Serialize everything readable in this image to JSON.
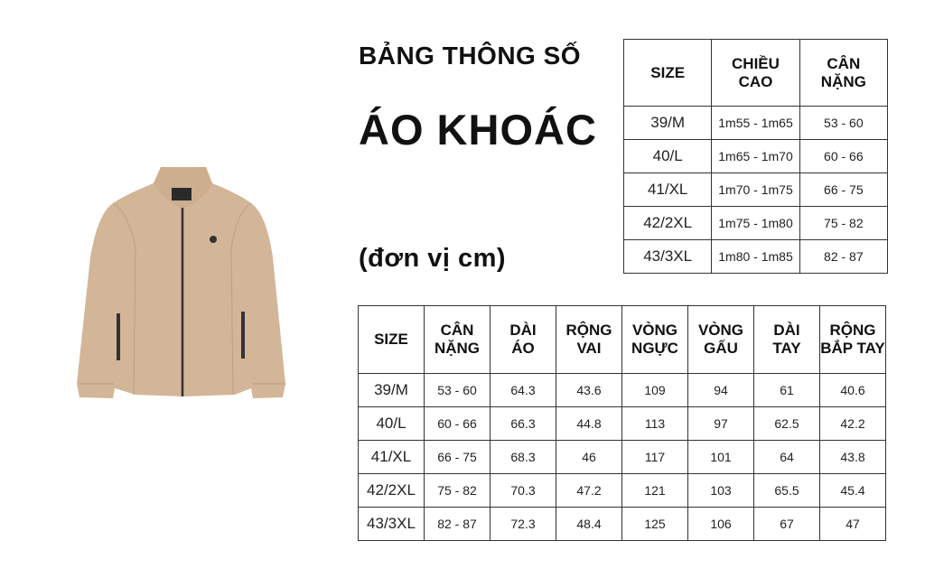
{
  "title_line1": "BẢNG THÔNG SỐ",
  "title_line2": "ÁO KHOÁC",
  "unit_note": "(đơn vị cm)",
  "product_image": {
    "icon": "beige-bomber-jacket",
    "color": "#d3b597"
  },
  "table_height_weight": {
    "headers": [
      "SIZE",
      "CHIỀU CAO",
      "CÂN NẶNG"
    ],
    "rows": [
      [
        "39/M",
        "1m55 - 1m65",
        "53 - 60"
      ],
      [
        "40/L",
        "1m65 - 1m70",
        "60 - 66"
      ],
      [
        "41/XL",
        "1m70 - 1m75",
        "66 - 75"
      ],
      [
        "42/2XL",
        "1m75 - 1m80",
        "75 - 82"
      ],
      [
        "43/3XL",
        "1m80 - 1m85",
        "82 - 87"
      ]
    ]
  },
  "table_measurements": {
    "headers": [
      "SIZE",
      "CÂN NẶNG",
      "DÀI ÁO",
      "RỘNG VAI",
      "VÒNG NGỰC",
      "VÒNG GẤU",
      "DÀI TAY",
      "RỘNG BẮP TAY"
    ],
    "rows": [
      [
        "39/M",
        "53 - 60",
        "64.3",
        "43.6",
        "109",
        "94",
        "61",
        "40.6"
      ],
      [
        "40/L",
        "60 - 66",
        "66.3",
        "44.8",
        "113",
        "97",
        "62.5",
        "42.2"
      ],
      [
        "41/XL",
        "66 - 75",
        "68.3",
        "46",
        "117",
        "101",
        "64",
        "43.8"
      ],
      [
        "42/2XL",
        "75 - 82",
        "70.3",
        "47.2",
        "121",
        "103",
        "65.5",
        "45.4"
      ],
      [
        "43/3XL",
        "82 - 87",
        "72.3",
        "48.4",
        "125",
        "106",
        "67",
        "47"
      ]
    ]
  }
}
